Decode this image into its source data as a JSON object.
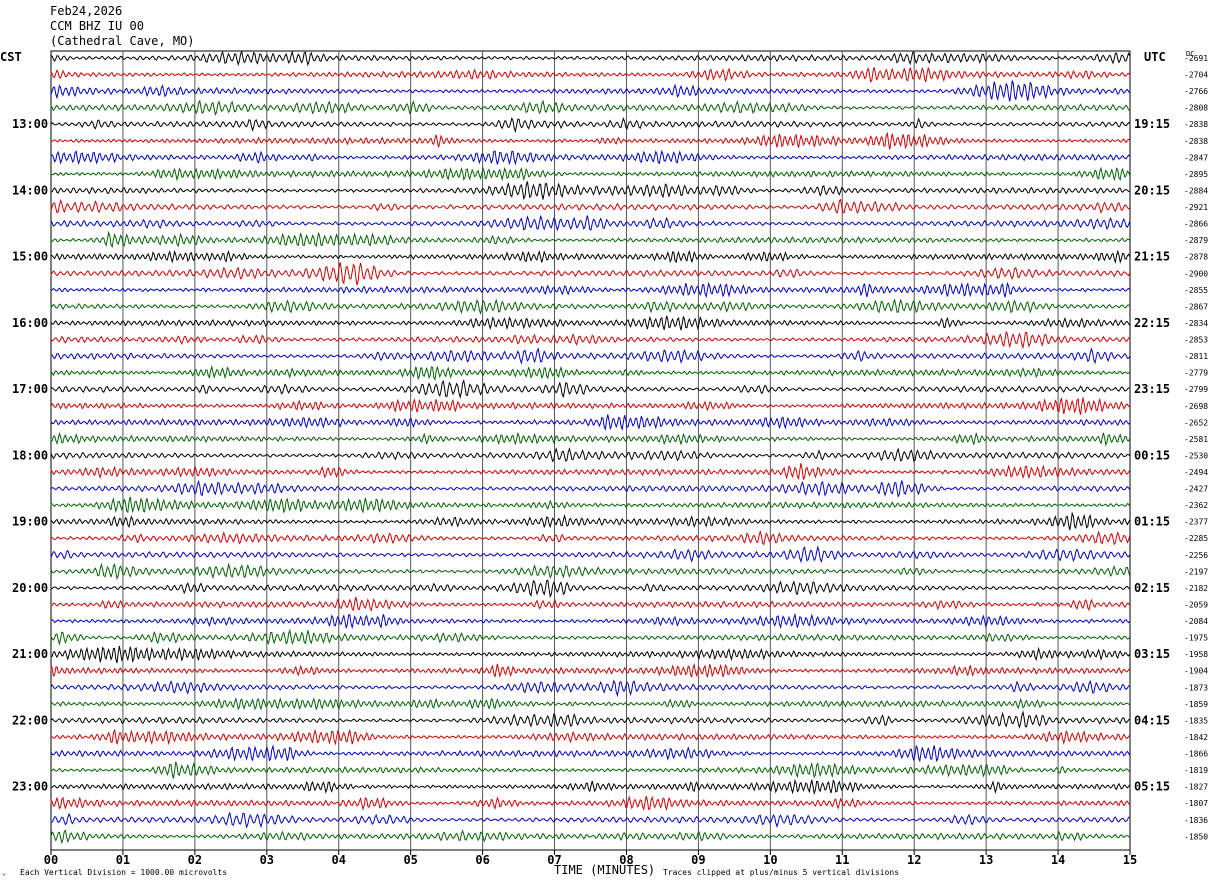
{
  "header": {
    "date": "Feb24,2026",
    "station": "CCM BHZ IU 00",
    "location": "(Cathedral Cave, MO)"
  },
  "left_tz": "CST",
  "right_tz": "UTC",
  "dc_label": "DC",
  "footer": {
    "scale_note": "Each Vertical Division = 1000.00 microvolts",
    "clip_note": "Traces clipped at plus/minus 5 vertical divisions"
  },
  "chart_data": {
    "type": "line",
    "title": "",
    "xlabel": "TIME (MINUTES)",
    "ylabel": "",
    "xlim": [
      0,
      15
    ],
    "x_tick_labels": [
      "00",
      "01",
      "02",
      "03",
      "04",
      "05",
      "06",
      "07",
      "08",
      "09",
      "10",
      "11",
      "12",
      "13",
      "14",
      "15"
    ],
    "trace_minutes": 15,
    "trace_count": 48,
    "trace_colors": [
      "#000000",
      "#d40000",
      "#0000cc",
      "#006400"
    ],
    "grid": true,
    "left_hour_labels": [
      "13:00",
      "14:00",
      "15:00",
      "16:00",
      "17:00",
      "18:00",
      "19:00",
      "20:00",
      "21:00",
      "22:00",
      "23:00"
    ],
    "right_hour_labels": [
      "19:15",
      "20:15",
      "21:15",
      "22:15",
      "23:15",
      "00:15",
      "01:15",
      "02:15",
      "03:15",
      "04:15",
      "05:15"
    ],
    "trace_dc_values": [
      "-2691",
      "-2704",
      "-2766",
      "-2808",
      "-2838",
      "-2838",
      "-2847",
      "-2895",
      "-2884",
      "-2921",
      "-2866",
      "-2879",
      "-2878",
      "-2900",
      "-2855",
      "-2867",
      "-2834",
      "-2853",
      "-2811",
      "-2779",
      "-2799",
      "-2698",
      "-2652",
      "-2581",
      "-2530",
      "-2494",
      "-2427",
      "-2362",
      "-2377",
      "-2285",
      "-2256",
      "-2197",
      "-2182",
      "-2059",
      "-2084",
      "-1975",
      "-1958",
      "-1904",
      "-1873",
      "-1859",
      "-1835",
      "-1842",
      "-1866",
      "-1819",
      "-1827",
      "-1807",
      "-1836",
      "-1850"
    ]
  }
}
